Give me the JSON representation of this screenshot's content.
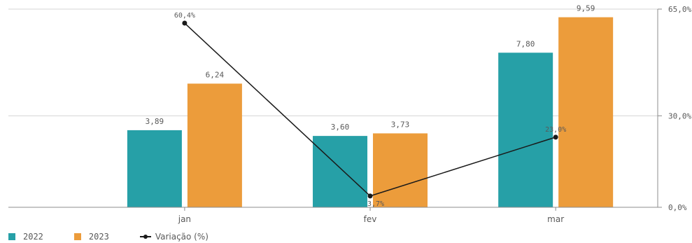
{
  "chart_data": {
    "type": "bar",
    "categories": [
      "jan",
      "fev",
      "mar"
    ],
    "series": [
      {
        "name": "2022",
        "values": [
          3.89,
          3.6,
          7.8
        ],
        "labels": [
          "3,89",
          "3,60",
          "7,80"
        ],
        "color": "#26a0a7"
      },
      {
        "name": "2023",
        "values": [
          6.24,
          3.73,
          9.59
        ],
        "labels": [
          "6,24",
          "3,73",
          "9,59"
        ],
        "color": "#ec9c3b"
      }
    ],
    "line_series": {
      "name": "Variação (%)",
      "values": [
        60.4,
        3.7,
        23.0
      ],
      "labels": [
        "60,4%",
        "3,7%",
        "23,0%"
      ],
      "color": "#1a1a1a"
    },
    "bar_ylim": [
      0,
      10
    ],
    "right_axis": {
      "ylim": [
        0,
        65
      ],
      "ticks": [
        0,
        30,
        65
      ],
      "tick_labels": [
        "0,0%",
        "30,0%",
        "65,0%"
      ]
    },
    "grid": true,
    "legend_position": "bottom-left"
  },
  "legend": {
    "item_2022": "2022",
    "item_2023": "2023",
    "item_line": "Variação (%)"
  }
}
